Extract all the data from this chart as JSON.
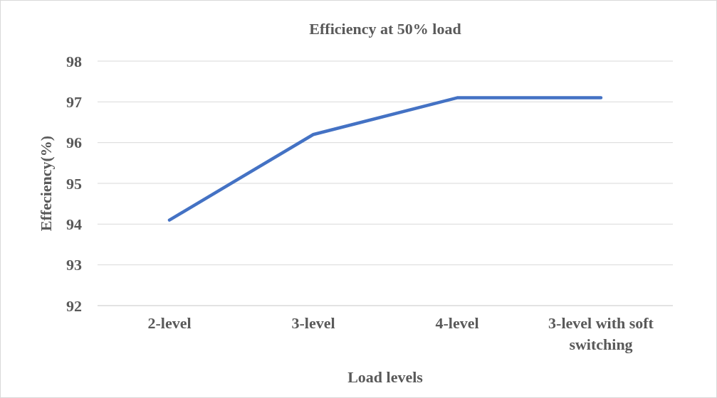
{
  "chart_data": {
    "type": "line",
    "title": "Efficiency at 50% load",
    "xlabel": "Load levels",
    "ylabel": "Effeciency(%)",
    "categories": [
      "2-level",
      "3-level",
      "4-level",
      "3-level with soft switching"
    ],
    "series": [
      {
        "color": "#4472c4",
        "values": [
          94.1,
          96.2,
          97.1,
          97.1
        ]
      }
    ],
    "ylim": [
      92,
      98
    ],
    "yticks": [
      92,
      93,
      94,
      95,
      96,
      97,
      98
    ],
    "grid": "y",
    "marker": "none",
    "line_style": "solid"
  }
}
